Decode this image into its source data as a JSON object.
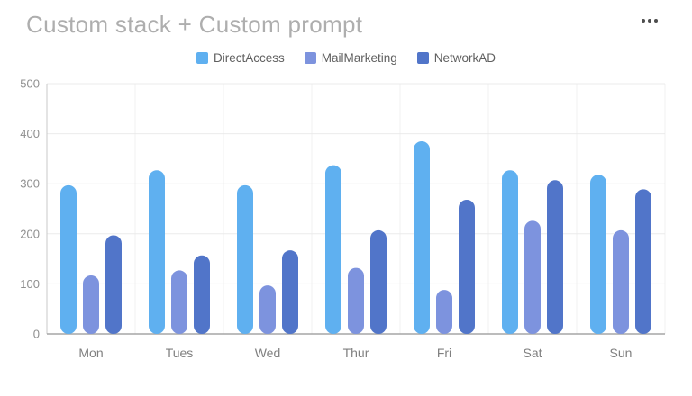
{
  "header": {
    "title": "Custom stack + Custom prompt",
    "menu_tooltip": "More options"
  },
  "icons": {
    "more_options": "ellipsis-three-dots"
  },
  "colors": {
    "title_text": "#aeaeae",
    "legend_text": "#5f5f5f",
    "axis_tick_text": "#8f8f8f",
    "x_label_text": "#808080",
    "gridline": "#ebebeb",
    "vertical_gridline": "#f0f0f0",
    "y_axis_line": "#c9c9c9",
    "baseline": "#a6a6a6",
    "background": "#ffffff"
  },
  "chart_data": {
    "type": "bar",
    "title": "Custom stack + Custom prompt",
    "categories": [
      "Mon",
      "Tues",
      "Wed",
      "Thur",
      "Fri",
      "Sat",
      "Sun"
    ],
    "series": [
      {
        "name": "DirectAccess",
        "color": "#5FB0F0",
        "values": [
          297,
          327,
          297,
          337,
          385,
          327,
          318
        ]
      },
      {
        "name": "MailMarketing",
        "color": "#7D93DE",
        "values": [
          117,
          127,
          97,
          132,
          88,
          226,
          207
        ]
      },
      {
        "name": "NetworkAD",
        "color": "#5175C9",
        "values": [
          197,
          157,
          167,
          207,
          268,
          307,
          289
        ]
      }
    ],
    "xlabel": "",
    "ylabel": "",
    "ylim": [
      0,
      500
    ],
    "y_ticks": [
      0,
      100,
      200,
      300,
      400,
      500
    ],
    "grid": true,
    "legend_position": "top",
    "bar_shape": "capsule"
  }
}
